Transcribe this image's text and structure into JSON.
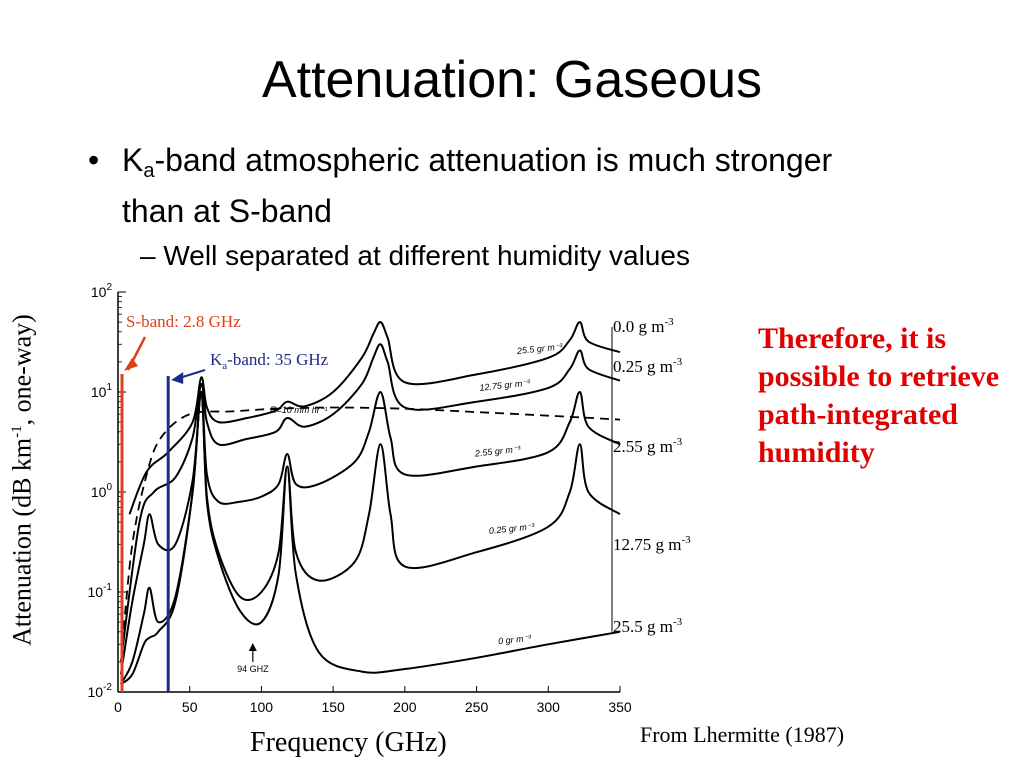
{
  "slide": {
    "title": "Attenuation: Gaseous",
    "bullet1": {
      "pre": "K",
      "sub": "a",
      "post": "-band atmospheric attenuation is much stronger than at S-band"
    },
    "bullet2": "Well separated at different humidity values",
    "conclusion": "Therefore, it is possible to retrieve path-integrated humidity",
    "source": "From Lhermitte (1987)"
  },
  "colors": {
    "sband": "#e0401a",
    "kaband": "#1f2a8c",
    "conclusion": "#e00000"
  },
  "chart_data": {
    "type": "line",
    "xlabel": "Frequency (GHz)",
    "ylabel": {
      "pre": "Attenuation (dB km",
      "sup": "-1",
      "post": ", one-way)"
    },
    "xlim": [
      0,
      350
    ],
    "ylim": [
      0.01,
      100
    ],
    "yscale": "log",
    "x_ticks": [
      0,
      50,
      100,
      150,
      200,
      250,
      300,
      350
    ],
    "y_tick_labels": [
      {
        "base": "10",
        "exp": "-2",
        "value": 0.01
      },
      {
        "base": "10",
        "exp": "-1",
        "value": 0.1
      },
      {
        "base": "10",
        "exp": "0",
        "value": 1
      },
      {
        "base": "10",
        "exp": "1",
        "value": 10
      },
      {
        "base": "10",
        "exp": "2",
        "value": 100
      }
    ],
    "series": [
      {
        "name": "0.0 g m",
        "sup": "-3",
        "curve_label": "0 gr m⁻³",
        "points": [
          [
            2,
            0.012
          ],
          [
            10,
            0.015
          ],
          [
            18,
            0.03
          ],
          [
            22,
            0.035
          ],
          [
            28,
            0.04
          ],
          [
            40,
            0.08
          ],
          [
            52,
            1.0
          ],
          [
            58,
            10
          ],
          [
            62,
            0.8
          ],
          [
            70,
            0.22
          ],
          [
            85,
            0.065
          ],
          [
            100,
            0.05
          ],
          [
            112,
            0.15
          ],
          [
            118,
            1.8
          ],
          [
            124,
            0.15
          ],
          [
            140,
            0.025
          ],
          [
            170,
            0.016
          ],
          [
            200,
            0.017
          ],
          [
            250,
            0.022
          ],
          [
            300,
            0.03
          ],
          [
            350,
            0.04
          ]
        ]
      },
      {
        "name": "0.25 g m",
        "sup": "-3",
        "curve_label": "0.25 gr m⁻³",
        "points": [
          [
            2,
            0.012
          ],
          [
            10,
            0.02
          ],
          [
            18,
            0.06
          ],
          [
            22,
            0.11
          ],
          [
            28,
            0.05
          ],
          [
            40,
            0.09
          ],
          [
            52,
            1.0
          ],
          [
            58,
            10
          ],
          [
            62,
            0.9
          ],
          [
            70,
            0.25
          ],
          [
            85,
            0.09
          ],
          [
            100,
            0.1
          ],
          [
            112,
            0.25
          ],
          [
            118,
            1.8
          ],
          [
            124,
            0.25
          ],
          [
            140,
            0.13
          ],
          [
            165,
            0.2
          ],
          [
            175,
            0.6
          ],
          [
            183,
            3.0
          ],
          [
            190,
            0.6
          ],
          [
            200,
            0.18
          ],
          [
            250,
            0.25
          ],
          [
            300,
            0.45
          ],
          [
            315,
            1.0
          ],
          [
            322,
            3.0
          ],
          [
            328,
            1.0
          ],
          [
            350,
            0.6
          ]
        ]
      },
      {
        "name": "2.55 g m",
        "sup": "-3",
        "curve_label": "2.55 gr m⁻³",
        "points": [
          [
            2,
            0.015
          ],
          [
            10,
            0.08
          ],
          [
            18,
            0.3
          ],
          [
            22,
            0.6
          ],
          [
            28,
            0.3
          ],
          [
            40,
            0.3
          ],
          [
            52,
            1.3
          ],
          [
            58,
            10
          ],
          [
            62,
            1.5
          ],
          [
            70,
            0.8
          ],
          [
            85,
            0.8
          ],
          [
            100,
            0.9
          ],
          [
            112,
            1.2
          ],
          [
            118,
            2.4
          ],
          [
            124,
            1.2
          ],
          [
            140,
            1.2
          ],
          [
            165,
            2.0
          ],
          [
            175,
            4.0
          ],
          [
            183,
            10
          ],
          [
            190,
            3.5
          ],
          [
            200,
            1.5
          ],
          [
            250,
            1.8
          ],
          [
            300,
            2.5
          ],
          [
            315,
            5.0
          ],
          [
            322,
            10
          ],
          [
            328,
            4.5
          ],
          [
            350,
            3.0
          ]
        ]
      },
      {
        "name": "12.75 g m",
        "sup": "-3",
        "curve_label": "12.75 gr m⁻³",
        "points": [
          [
            2,
            0.02
          ],
          [
            15,
            0.5
          ],
          [
            25,
            1.0
          ],
          [
            40,
            1.4
          ],
          [
            52,
            3.5
          ],
          [
            58,
            12
          ],
          [
            62,
            5.0
          ],
          [
            70,
            3.0
          ],
          [
            90,
            3.4
          ],
          [
            110,
            4.0
          ],
          [
            118,
            5.5
          ],
          [
            130,
            4.5
          ],
          [
            150,
            6.0
          ],
          [
            170,
            12
          ],
          [
            178,
            22
          ],
          [
            183,
            30
          ],
          [
            188,
            20
          ],
          [
            200,
            7.0
          ],
          [
            250,
            8.0
          ],
          [
            300,
            11
          ],
          [
            315,
            17
          ],
          [
            322,
            26
          ],
          [
            328,
            17
          ],
          [
            350,
            13
          ]
        ]
      },
      {
        "name": "25.5 g m",
        "sup": "-3",
        "curve_label": "25.5 gr m⁻³",
        "points": [
          [
            8,
            0.6
          ],
          [
            20,
            1.6
          ],
          [
            35,
            2.5
          ],
          [
            52,
            5.0
          ],
          [
            58,
            14
          ],
          [
            62,
            7.0
          ],
          [
            70,
            5.0
          ],
          [
            90,
            5.5
          ],
          [
            110,
            6.5
          ],
          [
            118,
            8.0
          ],
          [
            130,
            7.2
          ],
          [
            150,
            10
          ],
          [
            170,
            22
          ],
          [
            178,
            38
          ],
          [
            183,
            50
          ],
          [
            188,
            35
          ],
          [
            200,
            12.5
          ],
          [
            250,
            15
          ],
          [
            300,
            22
          ],
          [
            315,
            33
          ],
          [
            322,
            50
          ],
          [
            328,
            32
          ],
          [
            350,
            25
          ]
        ]
      }
    ],
    "rain_curve": {
      "label": "R=10 mm hr⁻¹",
      "style": "dashed",
      "points": [
        [
          3,
          0.03
        ],
        [
          10,
          0.3
        ],
        [
          20,
          1.5
        ],
        [
          30,
          3.5
        ],
        [
          50,
          6.0
        ],
        [
          80,
          6.4
        ],
        [
          110,
          6.8
        ],
        [
          150,
          7.0
        ],
        [
          200,
          6.8
        ],
        [
          250,
          6.3
        ],
        [
          300,
          5.8
        ],
        [
          350,
          5.3
        ]
      ]
    },
    "markers": [
      {
        "label": "S-band: 2.8 GHz",
        "x": 2.8
      },
      {
        "label": {
          "pre": "K",
          "sub": "a",
          "post": "-band: 35 GHz"
        },
        "x": 35
      }
    ],
    "annotations": [
      {
        "label": "94 GHZ",
        "x": 94
      }
    ]
  }
}
